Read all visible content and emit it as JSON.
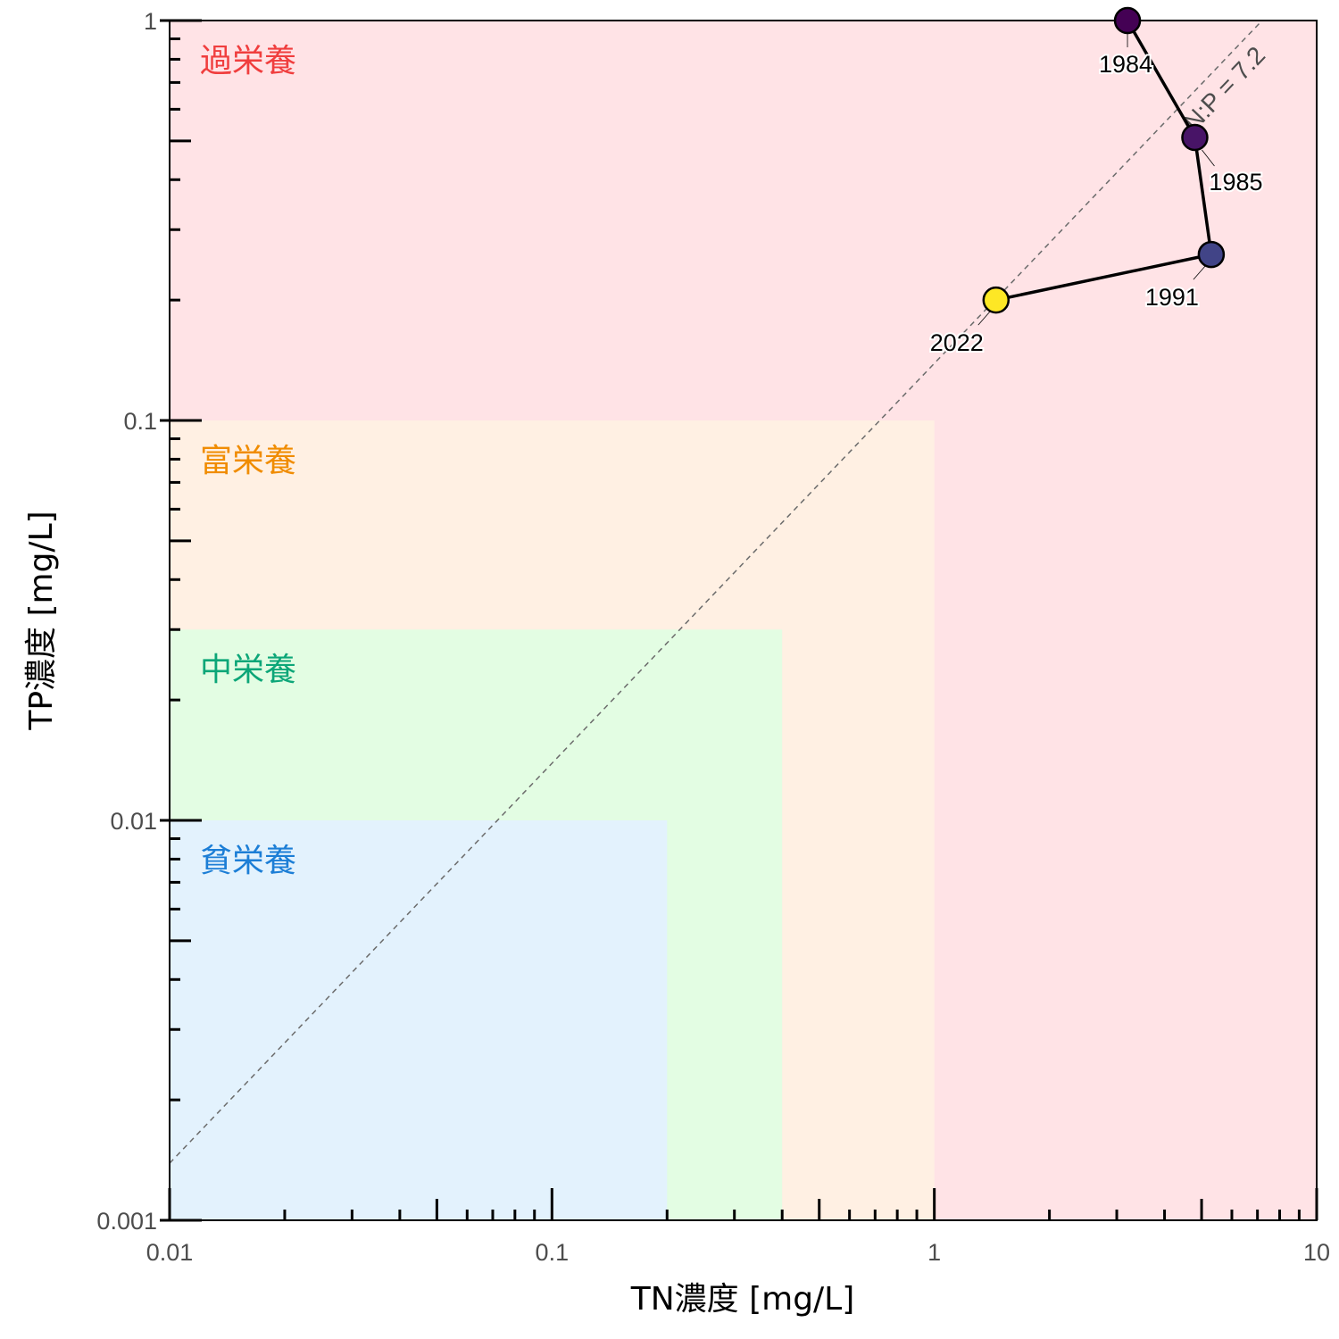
{
  "chart_data": {
    "type": "scatter",
    "x_scale": "log",
    "y_scale": "log",
    "xlabel": "TN濃度 [mg/L]",
    "ylabel": "TP濃度 [mg/L]",
    "xlim": [
      0.01,
      10
    ],
    "ylim": [
      0.001,
      1
    ],
    "x_ticks": [
      0.01,
      0.1,
      1,
      10
    ],
    "x_tick_labels": [
      "0.01",
      "0.1",
      "1",
      "10"
    ],
    "y_ticks": [
      0.001,
      0.01,
      0.1,
      1
    ],
    "y_tick_labels": [
      "0.001",
      "0.01",
      "0.1",
      "1"
    ],
    "grid": false,
    "legend": "none",
    "zones": [
      {
        "label": "過栄養",
        "tn_max": 10,
        "tp_max": 1,
        "fill": "#ffe3e6",
        "text_color": "#f03e3e"
      },
      {
        "label": "富栄養",
        "tn_max": 1,
        "tp_max": 0.1,
        "fill": "#fff0e3",
        "text_color": "#f08c00"
      },
      {
        "label": "中栄養",
        "tn_max": 0.4,
        "tp_max": 0.03,
        "fill": "#e3fde3",
        "text_color": "#0ca678"
      },
      {
        "label": "貧栄養",
        "tn_max": 0.2,
        "tp_max": 0.01,
        "fill": "#e3f2fd",
        "text_color": "#1c7ed6"
      }
    ],
    "ratio_line": {
      "label": "N:P = 7.2",
      "ratio": 7.2,
      "color": "#6b6b6b",
      "style": "dashed"
    },
    "series": [
      {
        "values": [
          {
            "year": "1984",
            "tn": 3.2,
            "tp": 1.0,
            "color": "#440154"
          },
          {
            "year": "1985",
            "tn": 4.8,
            "tp": 0.51,
            "color": "#481467"
          },
          {
            "year": "1991",
            "tn": 5.3,
            "tp": 0.26,
            "color": "#414487"
          },
          {
            "year": "2022",
            "tn": 1.45,
            "tp": 0.2,
            "color": "#fde725"
          }
        ]
      }
    ]
  }
}
